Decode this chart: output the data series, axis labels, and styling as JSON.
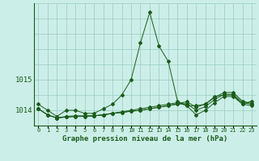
{
  "title": "Graphe pression niveau de la mer (hPa)",
  "bg_color": "#cceee8",
  "grid_color": "#99ccbb",
  "line_color": "#1a5c1a",
  "hours": [
    0,
    1,
    2,
    3,
    4,
    5,
    6,
    7,
    8,
    9,
    10,
    11,
    12,
    13,
    14,
    15,
    16,
    17,
    18,
    19,
    20,
    21,
    22,
    23
  ],
  "series": [
    [
      1014.2,
      1014.0,
      1013.8,
      1014.0,
      1014.0,
      1013.9,
      1013.9,
      1014.05,
      1014.2,
      1014.5,
      1015.0,
      1016.2,
      1017.2,
      1016.1,
      1015.6,
      1014.3,
      1014.15,
      1014.15,
      1014.2,
      1014.45,
      1014.5,
      1014.5,
      1014.2,
      1014.3
    ],
    [
      1014.05,
      1013.85,
      1013.75,
      1013.8,
      1013.82,
      1013.82,
      1013.82,
      1013.85,
      1013.9,
      1013.95,
      1014.0,
      1014.05,
      1014.1,
      1014.15,
      1014.2,
      1014.25,
      1014.15,
      1013.85,
      1014.0,
      1014.25,
      1014.45,
      1014.45,
      1014.2,
      1014.15
    ],
    [
      1014.05,
      1013.85,
      1013.75,
      1013.78,
      1013.8,
      1013.8,
      1013.82,
      1013.85,
      1013.9,
      1013.93,
      1013.97,
      1014.0,
      1014.05,
      1014.1,
      1014.15,
      1014.2,
      1014.22,
      1014.0,
      1014.12,
      1014.35,
      1014.52,
      1014.52,
      1014.25,
      1014.2
    ],
    [
      1014.05,
      1013.85,
      1013.75,
      1013.78,
      1013.8,
      1013.8,
      1013.82,
      1013.85,
      1013.9,
      1013.93,
      1013.97,
      1014.0,
      1014.05,
      1014.1,
      1014.15,
      1014.22,
      1014.28,
      1014.1,
      1014.2,
      1014.42,
      1014.58,
      1014.58,
      1014.3,
      1014.22
    ]
  ],
  "yticks": [
    1014,
    1015
  ],
  "ylim": [
    1013.5,
    1017.5
  ],
  "xlim": [
    -0.5,
    23.5
  ],
  "figsize": [
    3.2,
    2.0
  ],
  "dpi": 100
}
